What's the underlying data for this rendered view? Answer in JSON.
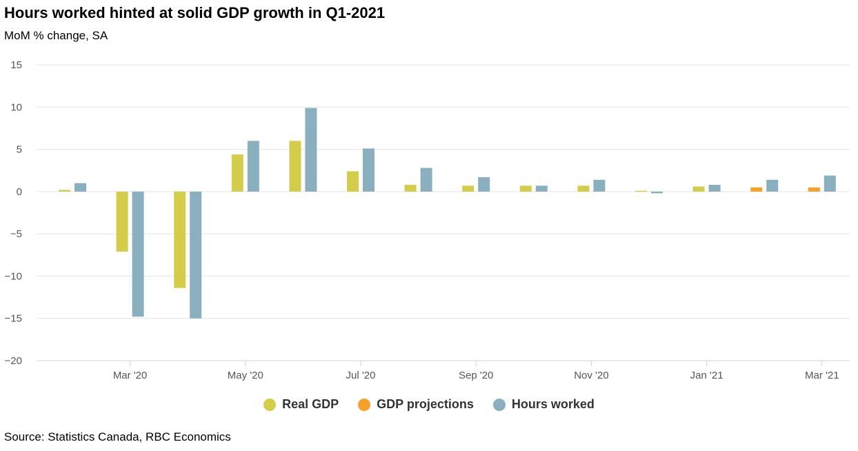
{
  "title": "Hours worked hinted at solid GDP growth in Q1-2021",
  "subtitle": "MoM % change, SA",
  "source": "Source: Statistics Canada, RBC Economics",
  "colors": {
    "real_gdp": "#d4cd4b",
    "gdp_projections": "#f5a12a",
    "hours_worked": "#8aafbf",
    "grid": "#e3e3e3",
    "axis_line": "#c8d3e0"
  },
  "legend": [
    {
      "key": "real_gdp",
      "label": "Real GDP"
    },
    {
      "key": "gdp_projections",
      "label": "GDP projections"
    },
    {
      "key": "hours_worked",
      "label": "Hours worked"
    }
  ],
  "chart_data": {
    "type": "bar",
    "categories": [
      "Feb '20",
      "Mar '20",
      "Apr '20",
      "May '20",
      "Jun '20",
      "Jul '20",
      "Aug '20",
      "Sep '20",
      "Oct '20",
      "Nov '20",
      "Dec '20",
      "Jan '21",
      "Feb '21",
      "Mar '21"
    ],
    "x_tick_labels": [
      "Mar '20",
      "May '20",
      "Jul '20",
      "Sep '20",
      "Nov '20",
      "Jan '21",
      "Mar '21"
    ],
    "series": [
      {
        "name": "Real GDP",
        "color_key": "real_gdp",
        "values": [
          0.2,
          -7.1,
          -11.4,
          4.4,
          6.0,
          2.4,
          0.8,
          0.7,
          0.7,
          0.7,
          0.1,
          0.6,
          null,
          null
        ]
      },
      {
        "name": "GDP projections",
        "color_key": "gdp_projections",
        "values": [
          null,
          null,
          null,
          null,
          null,
          null,
          null,
          null,
          null,
          null,
          null,
          null,
          0.5,
          0.5
        ]
      },
      {
        "name": "Hours worked",
        "color_key": "hours_worked",
        "values": [
          1.0,
          -14.8,
          -15.0,
          6.0,
          9.9,
          5.1,
          2.8,
          1.7,
          0.7,
          1.4,
          -0.2,
          0.8,
          1.4,
          1.9
        ]
      }
    ],
    "y_ticks": [
      15,
      10,
      5,
      0,
      -5,
      -10,
      -15,
      -20
    ],
    "y_tick_labels": [
      "15",
      "10",
      "5",
      "0",
      "−5",
      "−10",
      "−15",
      "−20"
    ],
    "ylim": [
      -20,
      15
    ],
    "xlabel": "",
    "ylabel": "",
    "grid": true,
    "legend_position": "bottom-center"
  }
}
